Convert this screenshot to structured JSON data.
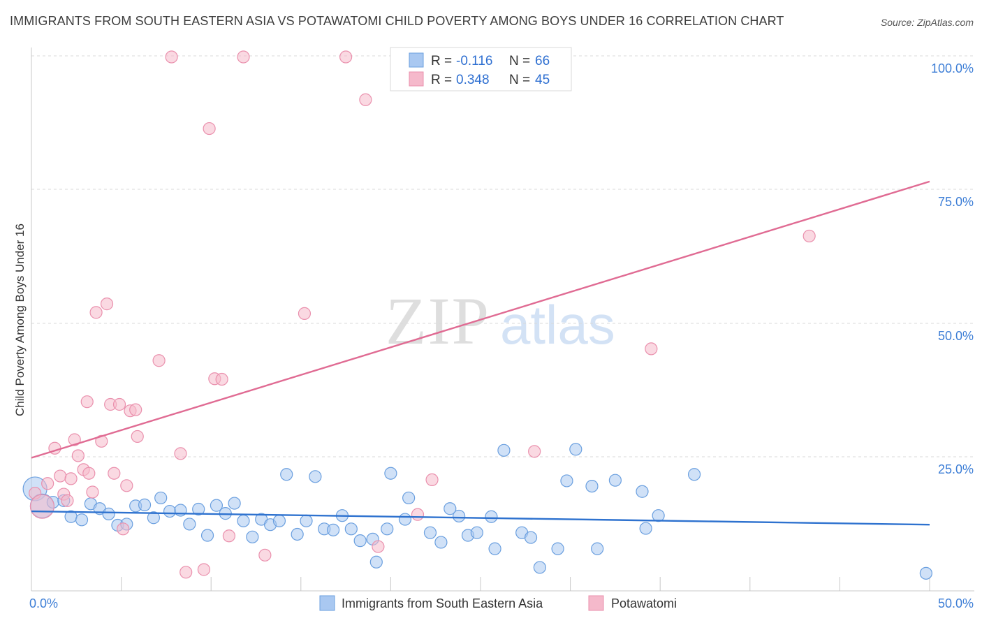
{
  "title": "IMMIGRANTS FROM SOUTH EASTERN ASIA VS POTAWATOMI CHILD POVERTY AMONG BOYS UNDER 16 CORRELATION CHART",
  "source": "Source: ZipAtlas.com",
  "watermark": {
    "zip": "ZIP",
    "atlas": "atlas"
  },
  "colors": {
    "blue_fill": "#a9c8f1",
    "blue_stroke": "#6a9fdf",
    "blue_line": "#2e72cf",
    "pink_fill": "#f5b9cb",
    "pink_stroke": "#ea90ad",
    "pink_line": "#e06b93",
    "label_blue": "#3d7ed6",
    "grid": "#d9d9d9"
  },
  "legend": {
    "rows": [
      {
        "r_label": "R =",
        "r_value": "-0.116",
        "n_label": "N =",
        "n_value": "66",
        "series": "blue"
      },
      {
        "r_label": "R =",
        "r_value": "0.348",
        "n_label": "N =",
        "n_value": "45",
        "series": "pink"
      }
    ]
  },
  "chart_data": {
    "type": "scatter",
    "title": "IMMIGRANTS FROM SOUTH EASTERN ASIA VS POTAWATOMI CHILD POVERTY AMONG BOYS UNDER 16 CORRELATION CHART",
    "xlabel": "",
    "ylabel": "Child Poverty Among Boys Under 16",
    "xlim": [
      0,
      50
    ],
    "ylim": [
      0,
      100
    ],
    "x_tick_labels": [
      "0.0%",
      "50.0%"
    ],
    "y_tick_labels": [
      "100.0%",
      "75.0%",
      "50.0%",
      "25.0%"
    ],
    "y_ticks": [
      100,
      75,
      50,
      25
    ],
    "grid": true,
    "legend_position": "top-center",
    "series": [
      {
        "name": "Immigrants from South Eastern Asia",
        "color": "#a9c8f1",
        "trend": {
          "x": [
            0,
            50
          ],
          "y": [
            14.8,
            12.3
          ]
        },
        "points": [
          {
            "x": 0.2,
            "y": 19,
            "big": true
          },
          {
            "x": 0.6,
            "y": 15.8,
            "big": true
          },
          {
            "x": 1.2,
            "y": 16.5
          },
          {
            "x": 1.8,
            "y": 16.8
          },
          {
            "x": 2.2,
            "y": 13.8
          },
          {
            "x": 2.8,
            "y": 13.2
          },
          {
            "x": 3.3,
            "y": 16.2
          },
          {
            "x": 3.8,
            "y": 15.3
          },
          {
            "x": 4.3,
            "y": 14.3
          },
          {
            "x": 4.8,
            "y": 12.2
          },
          {
            "x": 5.3,
            "y": 12.4
          },
          {
            "x": 5.8,
            "y": 15.8
          },
          {
            "x": 6.3,
            "y": 16.0
          },
          {
            "x": 6.8,
            "y": 13.6
          },
          {
            "x": 7.2,
            "y": 17.3
          },
          {
            "x": 7.7,
            "y": 14.8
          },
          {
            "x": 8.3,
            "y": 15.0
          },
          {
            "x": 8.8,
            "y": 12.4
          },
          {
            "x": 9.3,
            "y": 15.2
          },
          {
            "x": 9.8,
            "y": 10.3
          },
          {
            "x": 10.3,
            "y": 15.9
          },
          {
            "x": 10.8,
            "y": 14.4
          },
          {
            "x": 11.3,
            "y": 16.3
          },
          {
            "x": 11.8,
            "y": 13.0
          },
          {
            "x": 12.3,
            "y": 10.0
          },
          {
            "x": 12.8,
            "y": 13.3
          },
          {
            "x": 13.3,
            "y": 12.3
          },
          {
            "x": 13.8,
            "y": 13.0
          },
          {
            "x": 14.2,
            "y": 21.7
          },
          {
            "x": 14.8,
            "y": 10.5
          },
          {
            "x": 15.3,
            "y": 13.0
          },
          {
            "x": 15.8,
            "y": 21.3
          },
          {
            "x": 16.3,
            "y": 11.5
          },
          {
            "x": 16.8,
            "y": 11.3
          },
          {
            "x": 17.3,
            "y": 14.0
          },
          {
            "x": 17.8,
            "y": 11.5
          },
          {
            "x": 18.3,
            "y": 9.3
          },
          {
            "x": 19.0,
            "y": 9.6
          },
          {
            "x": 19.2,
            "y": 5.3
          },
          {
            "x": 19.8,
            "y": 11.5
          },
          {
            "x": 20.0,
            "y": 21.9
          },
          {
            "x": 20.8,
            "y": 13.3
          },
          {
            "x": 21.0,
            "y": 17.3
          },
          {
            "x": 22.2,
            "y": 10.8
          },
          {
            "x": 22.8,
            "y": 9.0
          },
          {
            "x": 23.3,
            "y": 15.3
          },
          {
            "x": 23.8,
            "y": 13.9
          },
          {
            "x": 24.3,
            "y": 10.3
          },
          {
            "x": 24.8,
            "y": 10.8
          },
          {
            "x": 25.6,
            "y": 13.8
          },
          {
            "x": 25.8,
            "y": 7.8
          },
          {
            "x": 26.3,
            "y": 26.2
          },
          {
            "x": 27.3,
            "y": 10.8
          },
          {
            "x": 27.8,
            "y": 9.9
          },
          {
            "x": 28.3,
            "y": 4.3
          },
          {
            "x": 29.3,
            "y": 7.8
          },
          {
            "x": 29.8,
            "y": 20.5
          },
          {
            "x": 30.3,
            "y": 26.4
          },
          {
            "x": 31.2,
            "y": 19.5
          },
          {
            "x": 31.5,
            "y": 7.8
          },
          {
            "x": 32.5,
            "y": 20.6
          },
          {
            "x": 34.0,
            "y": 18.5
          },
          {
            "x": 34.2,
            "y": 11.6
          },
          {
            "x": 34.9,
            "y": 14.0
          },
          {
            "x": 36.9,
            "y": 21.7
          },
          {
            "x": 49.8,
            "y": 3.2
          }
        ]
      },
      {
        "name": "Potawatomi",
        "color": "#f5b9cb",
        "trend": {
          "x": [
            0,
            50
          ],
          "y": [
            24.8,
            76.5
          ]
        },
        "points": [
          {
            "x": 0.2,
            "y": 18.2
          },
          {
            "x": 0.6,
            "y": 15.7,
            "big": true
          },
          {
            "x": 0.9,
            "y": 20.0
          },
          {
            "x": 1.3,
            "y": 26.6
          },
          {
            "x": 1.6,
            "y": 21.4
          },
          {
            "x": 1.8,
            "y": 18.0
          },
          {
            "x": 2.0,
            "y": 16.8
          },
          {
            "x": 2.2,
            "y": 20.9
          },
          {
            "x": 2.4,
            "y": 28.2
          },
          {
            "x": 2.6,
            "y": 25.2
          },
          {
            "x": 2.9,
            "y": 22.6
          },
          {
            "x": 3.1,
            "y": 35.3
          },
          {
            "x": 3.2,
            "y": 21.9
          },
          {
            "x": 3.4,
            "y": 18.4
          },
          {
            "x": 3.6,
            "y": 52.0
          },
          {
            "x": 3.9,
            "y": 27.9
          },
          {
            "x": 4.2,
            "y": 53.6
          },
          {
            "x": 4.4,
            "y": 34.8
          },
          {
            "x": 4.6,
            "y": 21.9
          },
          {
            "x": 4.9,
            "y": 34.8
          },
          {
            "x": 5.1,
            "y": 11.5
          },
          {
            "x": 5.3,
            "y": 19.6
          },
          {
            "x": 5.5,
            "y": 33.6
          },
          {
            "x": 5.8,
            "y": 33.8
          },
          {
            "x": 5.9,
            "y": 28.8
          },
          {
            "x": 7.1,
            "y": 43.0
          },
          {
            "x": 7.8,
            "y": 99.8
          },
          {
            "x": 8.3,
            "y": 25.6
          },
          {
            "x": 8.6,
            "y": 3.4
          },
          {
            "x": 9.6,
            "y": 3.9
          },
          {
            "x": 9.9,
            "y": 86.4
          },
          {
            "x": 10.2,
            "y": 39.6
          },
          {
            "x": 10.6,
            "y": 39.5
          },
          {
            "x": 11.0,
            "y": 10.2
          },
          {
            "x": 11.8,
            "y": 99.8
          },
          {
            "x": 13.0,
            "y": 6.6
          },
          {
            "x": 15.2,
            "y": 51.8
          },
          {
            "x": 17.5,
            "y": 99.8
          },
          {
            "x": 18.6,
            "y": 91.8
          },
          {
            "x": 19.3,
            "y": 8.2
          },
          {
            "x": 21.5,
            "y": 14.2
          },
          {
            "x": 22.3,
            "y": 20.7
          },
          {
            "x": 34.5,
            "y": 45.2
          },
          {
            "x": 43.3,
            "y": 66.3
          },
          {
            "x": 28.0,
            "y": 26.0
          }
        ]
      }
    ]
  },
  "bottom_legend": [
    {
      "label": "Immigrants from South Eastern Asia",
      "series": "blue"
    },
    {
      "label": "Potawatomi",
      "series": "pink"
    }
  ]
}
